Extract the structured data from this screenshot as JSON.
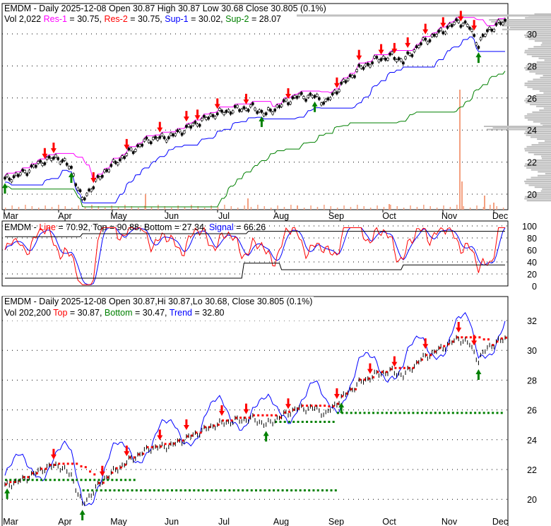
{
  "chart_data": [
    {
      "type": "line",
      "title": "EMDM - Daily 2025-12-08 Open 30.87  High 30.87  Low 30.68  Close 30.805 (0.1%)",
      "title_parts": {
        "head": "EMDM - Daily 2025-12-08 Open 30.87  High 30.87  Low 30.68  Close 30.805 (0.1%)",
        "vol": "Vol 2,022",
        "res1": "Res-1",
        "res1_val": " = 30.75, ",
        "res2": "Res-2",
        "res2_val": " = 30.75, ",
        "sup1": "Sup-1",
        "sup1_val": " = 30.02, ",
        "sup2": "Sup-2",
        "sup2_val": " = 28.07"
      },
      "yticks": [
        "30",
        "28",
        "26",
        "24",
        "22",
        "20"
      ],
      "ylim": [
        19.3,
        31.8
      ],
      "xticks": [
        "Mar",
        "Apr",
        "May",
        "Jun",
        "Jul",
        "Aug",
        "Sep",
        "Oct",
        "Nov",
        "Dec"
      ],
      "colors": {
        "res1": "#ff00ff",
        "res2": "#ff0000",
        "sup1": "#0000ff",
        "sup2": "#008000"
      }
    },
    {
      "type": "line",
      "title_parts": {
        "head": "EMDM - ",
        "line": "Line",
        "line_val": " = 70.92, Top = 90.88, Bottom = 27.34, ",
        "signal": "Signal",
        "signal_val": " = 66.26"
      },
      "yticks": [
        "100",
        "80",
        "60",
        "40",
        "20",
        "0"
      ],
      "ylim": [
        0,
        100
      ],
      "top": 90.88,
      "bottom": 27.34
    },
    {
      "type": "line",
      "title_parts": {
        "head": "EMDM - Daily 2025-12-08 Open 30.87,Hi 30.87,Lo 30.68, Close 30.805 (0.1%)",
        "vol": "Vol 202,200 ",
        "top": "Top",
        "top_val": " = 30.87, ",
        "bottom": "Bottom",
        "bottom_val": " = 30.47, ",
        "trend": "Trend",
        "trend_val": " = 32.80"
      },
      "yticks": [
        "32",
        "30",
        "28",
        "26",
        "24",
        "22",
        "20"
      ],
      "ylim": [
        19.3,
        33.2
      ]
    }
  ],
  "price_keypoints": [
    [
      0,
      20.9
    ],
    [
      8,
      21.3
    ],
    [
      18,
      22.1
    ],
    [
      24,
      22.3
    ],
    [
      30,
      21.6
    ],
    [
      35,
      19.6
    ],
    [
      38,
      20.2
    ],
    [
      45,
      21.4
    ],
    [
      55,
      22.5
    ],
    [
      65,
      23.4
    ],
    [
      75,
      23.6
    ],
    [
      85,
      24.3
    ],
    [
      95,
      25.0
    ],
    [
      105,
      25.3
    ],
    [
      112,
      25.4
    ],
    [
      118,
      25.0
    ],
    [
      124,
      25.5
    ],
    [
      132,
      26.1
    ],
    [
      140,
      26.1
    ],
    [
      145,
      25.7
    ],
    [
      152,
      26.8
    ],
    [
      160,
      27.8
    ],
    [
      168,
      28.4
    ],
    [
      175,
      28.6
    ],
    [
      180,
      28.3
    ],
    [
      188,
      29.4
    ],
    [
      198,
      30.2
    ],
    [
      205,
      30.8
    ],
    [
      210,
      30.4
    ],
    [
      214,
      29.3
    ],
    [
      218,
      30.2
    ],
    [
      226,
      30.8
    ]
  ]
}
